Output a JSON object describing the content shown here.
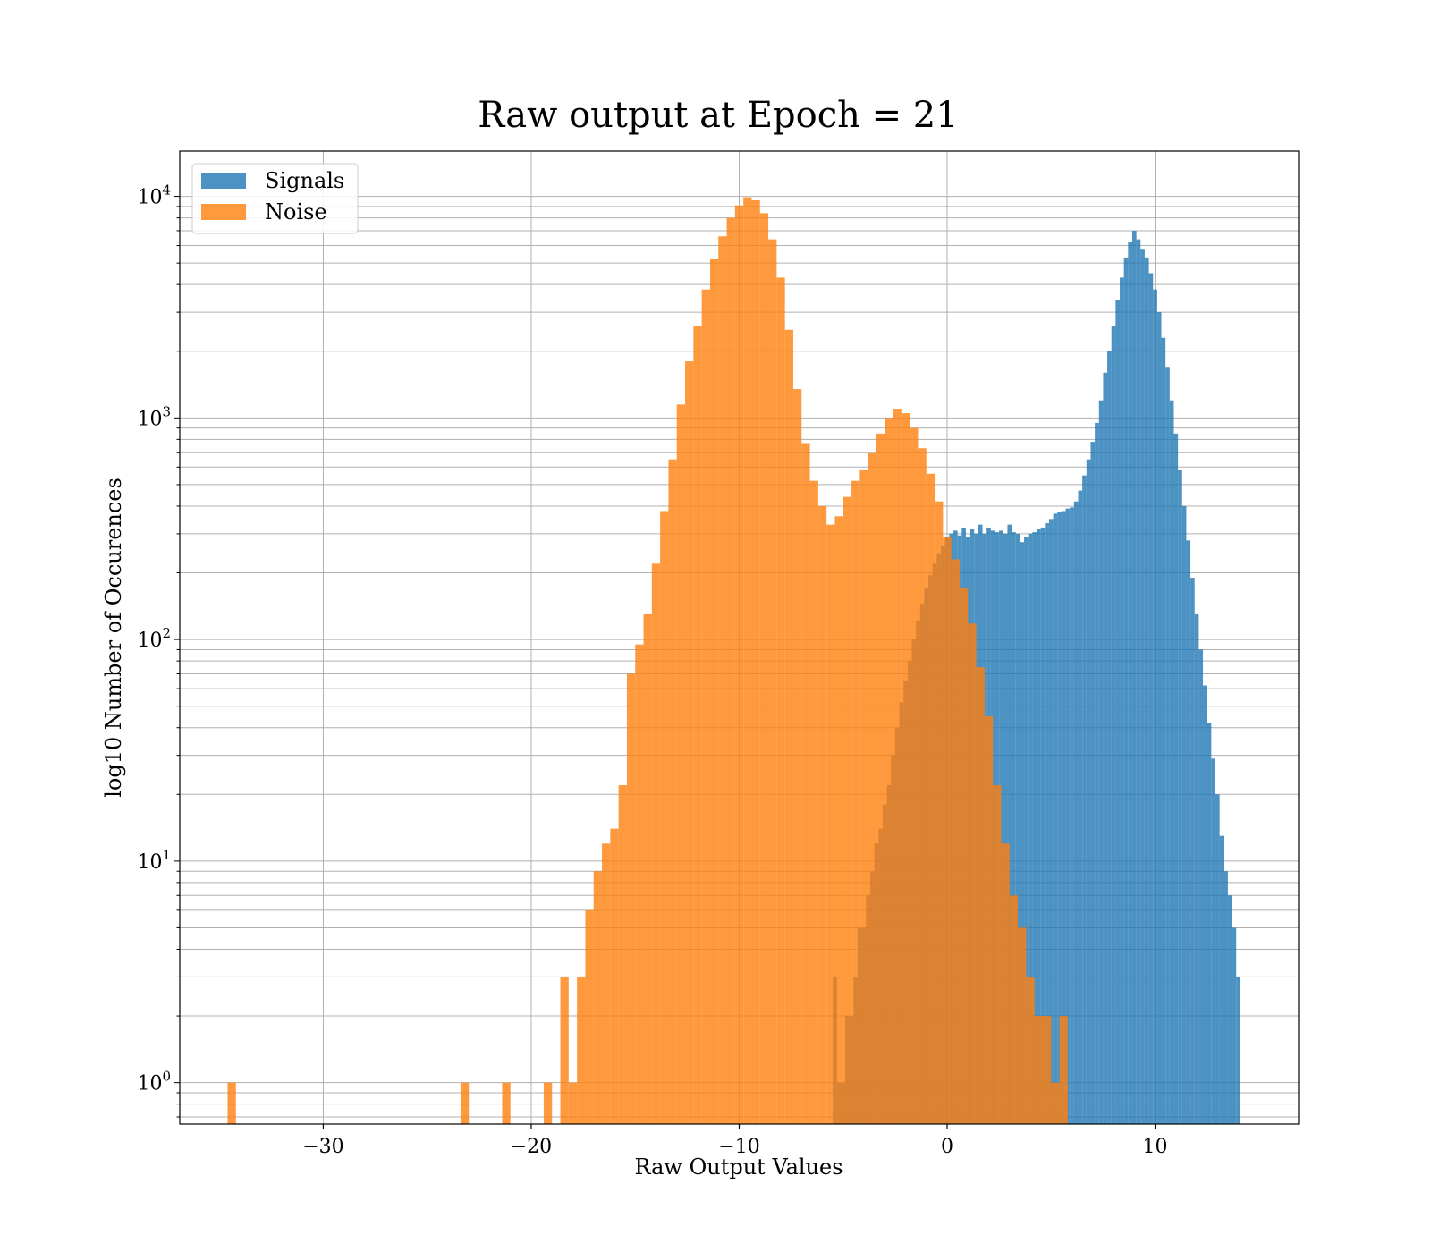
{
  "chart_data": {
    "type": "bar",
    "title": "Raw output at Epoch = 21",
    "xlabel": "Raw Output Values",
    "ylabel": "log10 Number of Occurences",
    "yscale": "log",
    "xlim": [
      -36.9,
      16.9
    ],
    "ylim": [
      0.65,
      16000
    ],
    "xticks": [
      -30,
      -20,
      -10,
      0,
      10
    ],
    "xtick_labels": [
      "−30",
      "−20",
      "−10",
      "0",
      "10"
    ],
    "yticks": [
      1,
      10,
      100,
      1000,
      10000
    ],
    "ytick_labels": [
      {
        "base": "10",
        "exp": "0"
      },
      {
        "base": "10",
        "exp": "1"
      },
      {
        "base": "10",
        "exp": "2"
      },
      {
        "base": "10",
        "exp": "3"
      },
      {
        "base": "10",
        "exp": "4"
      }
    ],
    "grid": true,
    "legend_position": "top-left",
    "series": [
      {
        "name": "Signals",
        "color": "#1f77b4",
        "bin_width": 0.2,
        "bins": [
          [
            -5.5,
            3
          ],
          [
            -5.3,
            1
          ],
          [
            -5.1,
            1
          ],
          [
            -4.9,
            2
          ],
          [
            -4.7,
            2
          ],
          [
            -4.5,
            3
          ],
          [
            -4.3,
            5
          ],
          [
            -4.1,
            5
          ],
          [
            -3.9,
            7
          ],
          [
            -3.7,
            9
          ],
          [
            -3.5,
            12
          ],
          [
            -3.3,
            14
          ],
          [
            -3.1,
            18
          ],
          [
            -2.9,
            22
          ],
          [
            -2.7,
            30
          ],
          [
            -2.5,
            40
          ],
          [
            -2.3,
            52
          ],
          [
            -2.1,
            65
          ],
          [
            -1.9,
            80
          ],
          [
            -1.7,
            100
          ],
          [
            -1.5,
            122
          ],
          [
            -1.3,
            145
          ],
          [
            -1.1,
            170
          ],
          [
            -0.9,
            195
          ],
          [
            -0.7,
            220
          ],
          [
            -0.5,
            245
          ],
          [
            -0.3,
            265
          ],
          [
            -0.1,
            290
          ],
          [
            0.1,
            300
          ],
          [
            0.3,
            310
          ],
          [
            0.5,
            295
          ],
          [
            0.7,
            320
          ],
          [
            0.9,
            290
          ],
          [
            1.1,
            315
          ],
          [
            1.3,
            300
          ],
          [
            1.5,
            330
          ],
          [
            1.7,
            300
          ],
          [
            1.9,
            320
          ],
          [
            2.1,
            310
          ],
          [
            2.3,
            305
          ],
          [
            2.5,
            310
          ],
          [
            2.7,
            300
          ],
          [
            2.9,
            330
          ],
          [
            3.1,
            305
          ],
          [
            3.3,
            300
          ],
          [
            3.5,
            275
          ],
          [
            3.7,
            290
          ],
          [
            3.9,
            300
          ],
          [
            4.1,
            305
          ],
          [
            4.3,
            315
          ],
          [
            4.5,
            320
          ],
          [
            4.7,
            335
          ],
          [
            4.9,
            350
          ],
          [
            5.1,
            370
          ],
          [
            5.3,
            375
          ],
          [
            5.5,
            380
          ],
          [
            5.7,
            390
          ],
          [
            5.9,
            395
          ],
          [
            6.1,
            420
          ],
          [
            6.3,
            470
          ],
          [
            6.5,
            550
          ],
          [
            6.7,
            650
          ],
          [
            6.9,
            780
          ],
          [
            7.1,
            950
          ],
          [
            7.3,
            1200
          ],
          [
            7.5,
            1600
          ],
          [
            7.7,
            2000
          ],
          [
            7.9,
            2600
          ],
          [
            8.1,
            3400
          ],
          [
            8.3,
            4300
          ],
          [
            8.5,
            5300
          ],
          [
            8.7,
            6200
          ],
          [
            8.9,
            7000
          ],
          [
            9.1,
            6400
          ],
          [
            9.3,
            5800
          ],
          [
            9.5,
            5300
          ],
          [
            9.7,
            4500
          ],
          [
            9.9,
            3800
          ],
          [
            10.1,
            3000
          ],
          [
            10.3,
            2300
          ],
          [
            10.5,
            1700
          ],
          [
            10.7,
            1200
          ],
          [
            10.9,
            850
          ],
          [
            11.1,
            580
          ],
          [
            11.3,
            400
          ],
          [
            11.5,
            280
          ],
          [
            11.7,
            190
          ],
          [
            11.9,
            130
          ],
          [
            12.1,
            90
          ],
          [
            12.3,
            62
          ],
          [
            12.5,
            42
          ],
          [
            12.7,
            29
          ],
          [
            12.9,
            20
          ],
          [
            13.1,
            13
          ],
          [
            13.3,
            9
          ],
          [
            13.5,
            7
          ],
          [
            13.7,
            5
          ],
          [
            13.9,
            3
          ]
        ]
      },
      {
        "name": "Noise",
        "color": "#ff7f0e",
        "bin_width": 0.4,
        "bins": [
          [
            -34.6,
            1
          ],
          [
            -23.4,
            1
          ],
          [
            -21.4,
            1
          ],
          [
            -19.4,
            1
          ],
          [
            -18.6,
            3
          ],
          [
            -18.2,
            1
          ],
          [
            -17.8,
            3
          ],
          [
            -17.4,
            6
          ],
          [
            -17.0,
            9
          ],
          [
            -16.6,
            12
          ],
          [
            -16.2,
            14
          ],
          [
            -15.8,
            22
          ],
          [
            -15.4,
            70
          ],
          [
            -15.0,
            95
          ],
          [
            -14.6,
            130
          ],
          [
            -14.2,
            220
          ],
          [
            -13.8,
            380
          ],
          [
            -13.4,
            650
          ],
          [
            -13.0,
            1150
          ],
          [
            -12.6,
            1800
          ],
          [
            -12.2,
            2600
          ],
          [
            -11.8,
            3800
          ],
          [
            -11.4,
            5200
          ],
          [
            -11.0,
            6600
          ],
          [
            -10.6,
            8000
          ],
          [
            -10.2,
            9100
          ],
          [
            -9.8,
            9900
          ],
          [
            -9.4,
            9600
          ],
          [
            -9.0,
            8400
          ],
          [
            -8.6,
            6400
          ],
          [
            -8.2,
            4300
          ],
          [
            -7.8,
            2500
          ],
          [
            -7.4,
            1350
          ],
          [
            -7.0,
            770
          ],
          [
            -6.6,
            520
          ],
          [
            -6.2,
            400
          ],
          [
            -5.8,
            330
          ],
          [
            -5.4,
            360
          ],
          [
            -5.0,
            440
          ],
          [
            -4.6,
            520
          ],
          [
            -4.2,
            580
          ],
          [
            -3.8,
            700
          ],
          [
            -3.4,
            850
          ],
          [
            -3.0,
            1000
          ],
          [
            -2.6,
            1100
          ],
          [
            -2.2,
            1050
          ],
          [
            -1.8,
            900
          ],
          [
            -1.4,
            730
          ],
          [
            -1.0,
            560
          ],
          [
            -0.6,
            420
          ],
          [
            -0.2,
            290
          ],
          [
            0.2,
            230
          ],
          [
            0.6,
            170
          ],
          [
            1.0,
            118
          ],
          [
            1.4,
            75
          ],
          [
            1.8,
            45
          ],
          [
            2.2,
            22
          ],
          [
            2.6,
            12
          ],
          [
            3.0,
            7
          ],
          [
            3.4,
            5
          ],
          [
            3.8,
            3
          ],
          [
            4.2,
            2
          ],
          [
            4.6,
            2
          ],
          [
            5.0,
            1
          ],
          [
            5.4,
            2
          ]
        ]
      }
    ]
  }
}
